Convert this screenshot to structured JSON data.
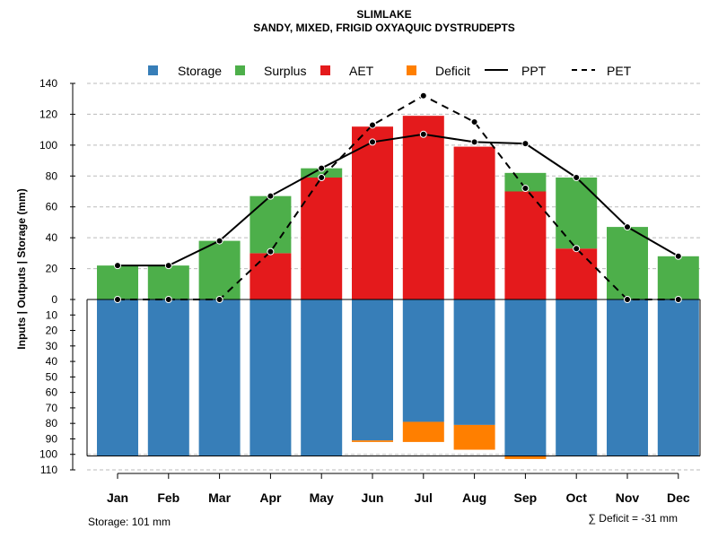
{
  "chart_data": {
    "type": "bar",
    "title": "SLIMLAKE",
    "subtitle": "SANDY, MIXED, FRIGID OXYAQUIC DYSTRUDEPTS",
    "ylabel": "Inputs | Outputs | Storage    (mm)",
    "categories": [
      "Jan",
      "Feb",
      "Mar",
      "Apr",
      "May",
      "Jun",
      "Jul",
      "Aug",
      "Sep",
      "Oct",
      "Nov",
      "Dec"
    ],
    "ylim_upper": [
      0,
      140
    ],
    "ylim_lower": [
      0,
      110
    ],
    "upper_ticks": [
      "0",
      "20",
      "40",
      "60",
      "80",
      "100",
      "120",
      "140"
    ],
    "lower_ticks": [
      "10",
      "20",
      "30",
      "40",
      "50",
      "60",
      "70",
      "80",
      "90",
      "100",
      "110"
    ],
    "legend": {
      "storage": "Storage",
      "surplus": "Surplus",
      "aet": "AET",
      "deficit": "Deficit",
      "ppt": "PPT",
      "pet": "PET"
    },
    "colors": {
      "storage": "#377EB8",
      "surplus": "#4DAF4A",
      "aet": "#E41A1C",
      "deficit": "#FF7F00",
      "line": "#000000",
      "grid": "#BBBBBB"
    },
    "series": {
      "aet": [
        0,
        0,
        0,
        30,
        79,
        112,
        119,
        99,
        70,
        33,
        0,
        0
      ],
      "surplus": [
        22,
        22,
        38,
        37,
        6,
        0,
        0,
        0,
        12,
        46,
        47,
        28
      ],
      "storage": [
        101,
        101,
        101,
        101,
        101,
        91,
        79,
        81,
        101,
        101,
        101,
        101
      ],
      "deficit": [
        0,
        0,
        0,
        0,
        0,
        1,
        13,
        16,
        2,
        0,
        0,
        0
      ],
      "ppt": [
        22,
        22,
        38,
        67,
        85,
        102,
        107,
        102,
        101,
        79,
        47,
        28
      ],
      "pet": [
        0,
        0,
        0,
        31,
        79,
        113,
        132,
        115,
        72,
        33,
        0,
        0
      ]
    },
    "footer_storage": "Storage: 101 mm",
    "footer_deficit": "∑ Deficit = -31 mm"
  }
}
